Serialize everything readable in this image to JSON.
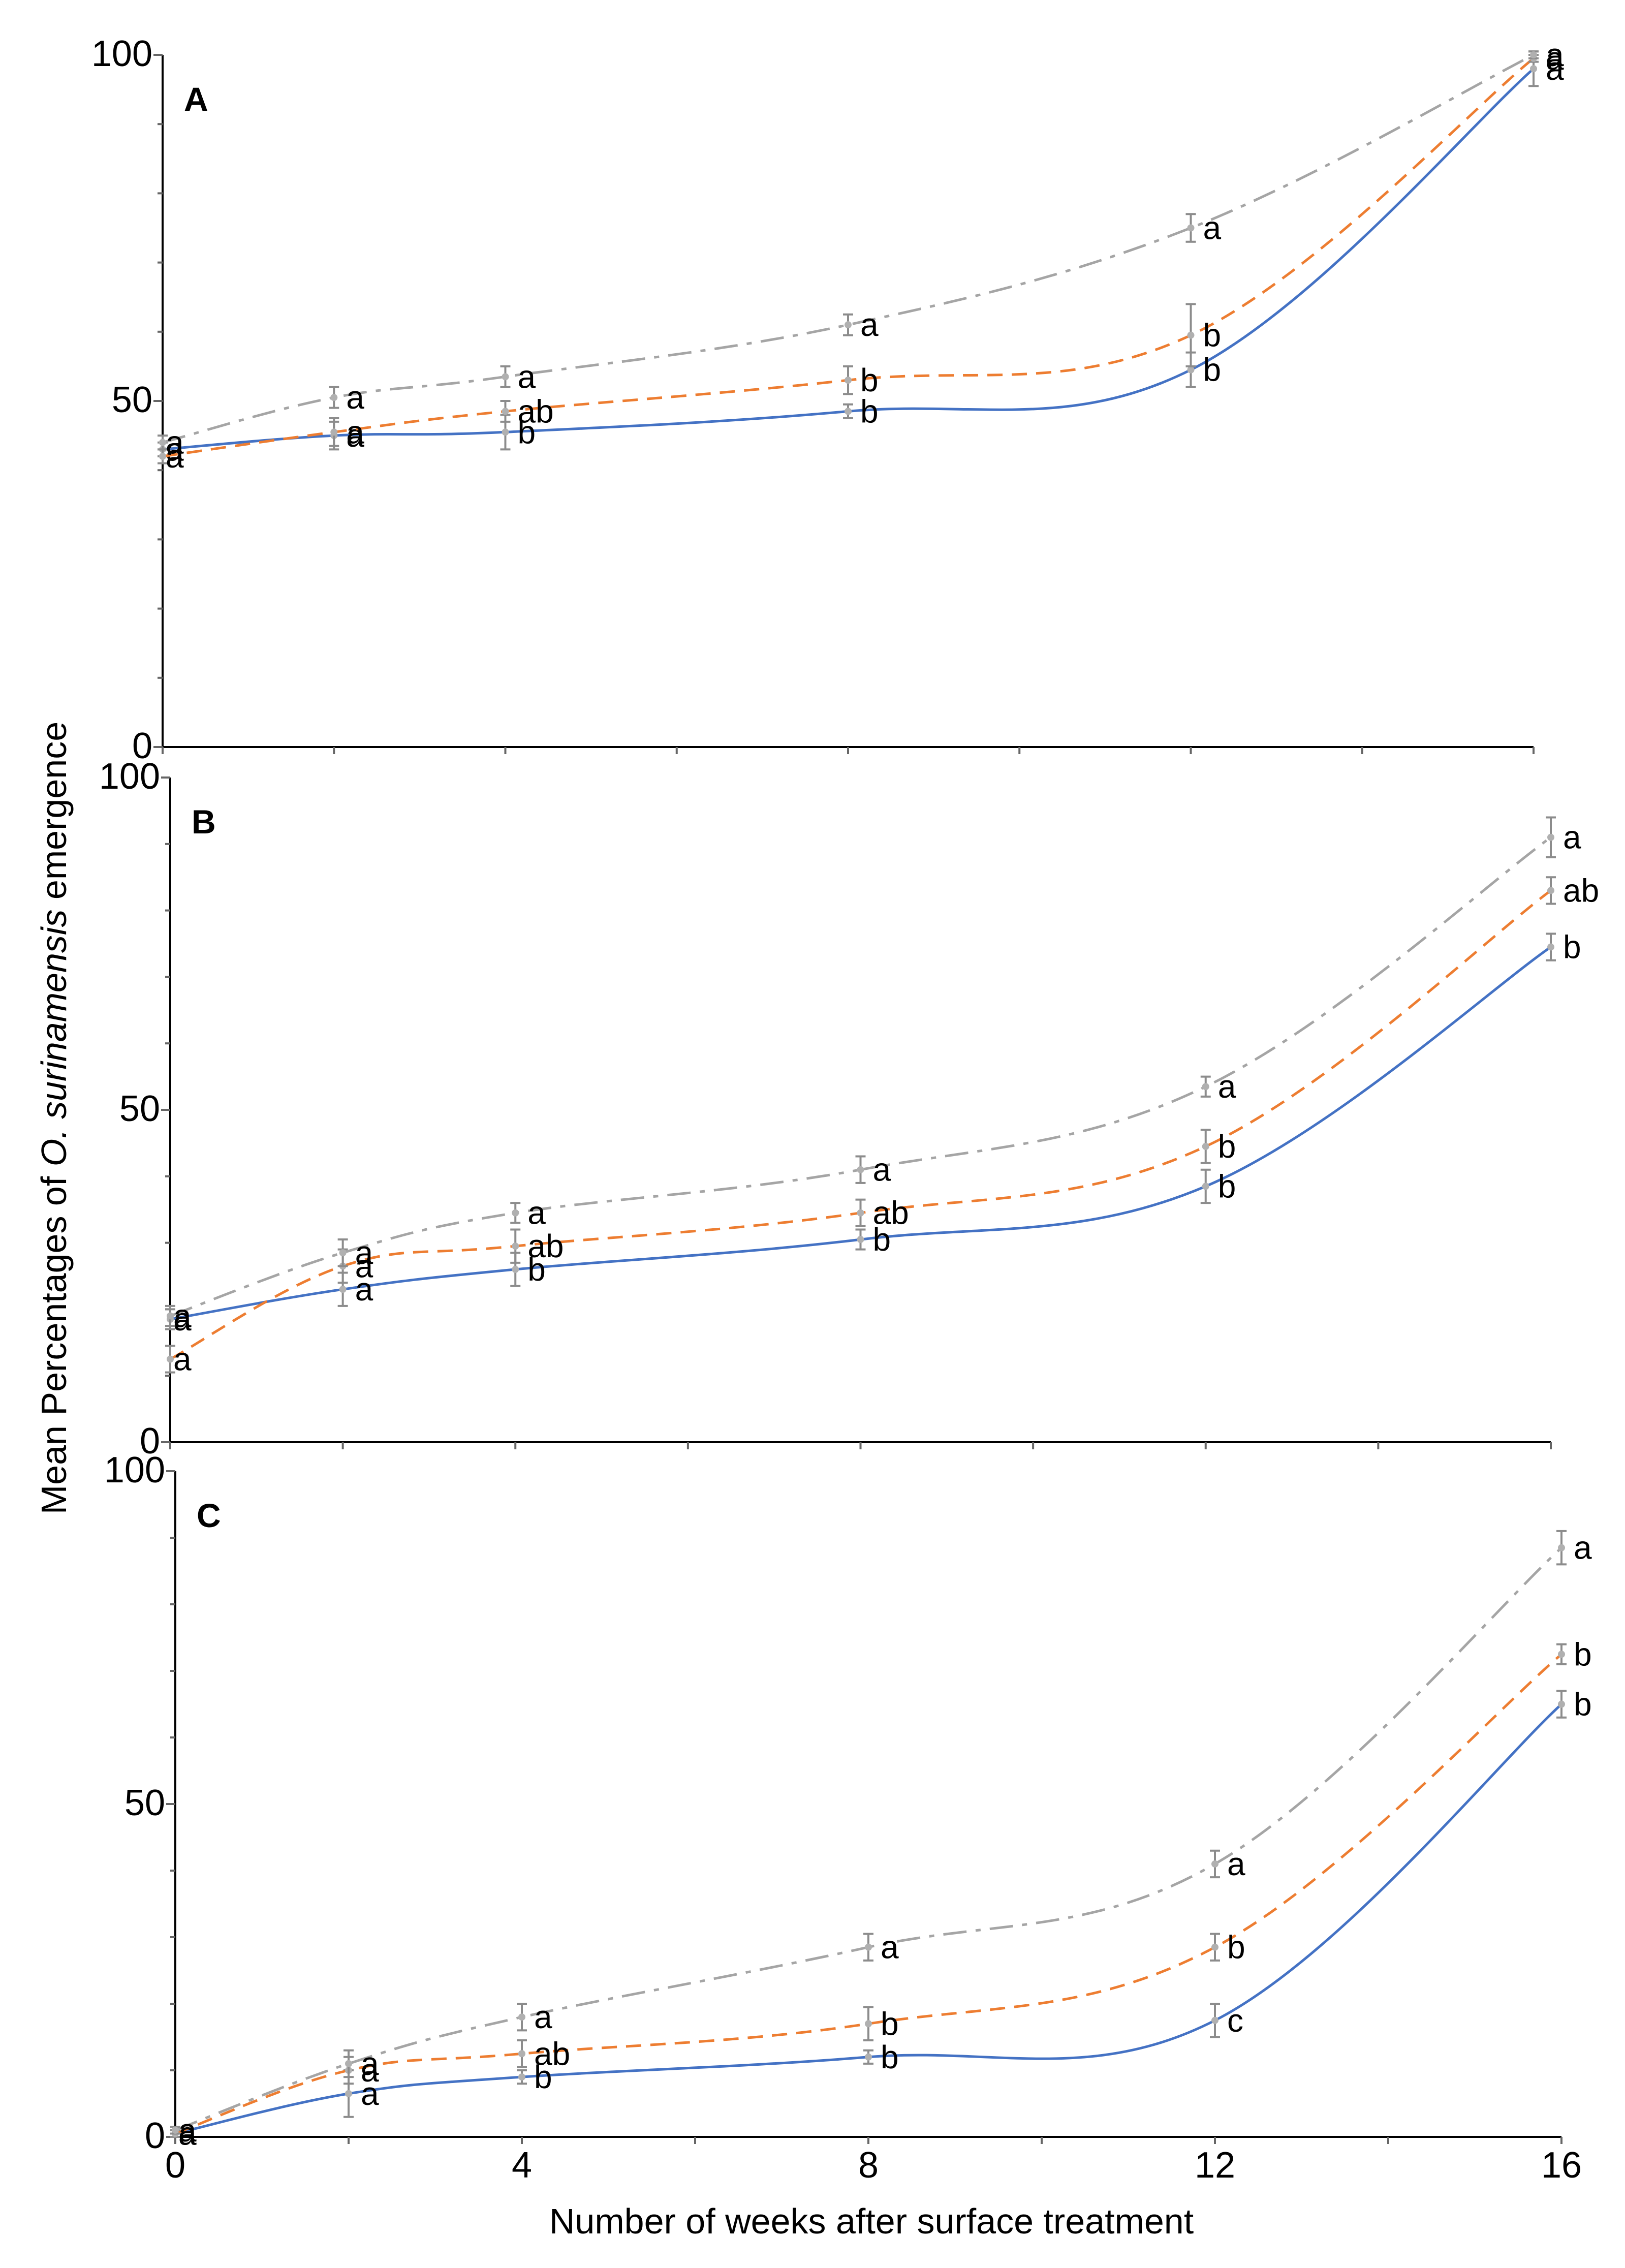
{
  "chart_data": {
    "type": "line",
    "xlabel": "Number of weeks after surface treatment",
    "ylabel": {
      "prefix": "Mean Percentages of ",
      "species": "O. surinamensis",
      "suffix": " emergence"
    },
    "x_ticks": [
      "0",
      "4",
      "8",
      "12",
      "16"
    ],
    "x": [
      0,
      2,
      4,
      8,
      12,
      16
    ],
    "xlim": [
      0,
      16
    ],
    "series_styles": [
      {
        "name": "Series 1 (solid)",
        "color": "#4472C4",
        "dash": "solid"
      },
      {
        "name": "Series 2 (dashed)",
        "color": "#ED7D31",
        "dash": "dashed"
      },
      {
        "name": "Series 3 (dash-dot)",
        "color": "#A5A5A5",
        "dash": "dashdot"
      }
    ],
    "panels": [
      {
        "letter": "A",
        "ylim": [
          0,
          100
        ],
        "y_ticks": [
          "0",
          "50",
          "100"
        ],
        "series": [
          {
            "name": "Series 1 (solid)",
            "values": [
              43,
              45,
              45.5,
              48.5,
              54.5,
              98
            ],
            "errors": [
              1.0,
              2.0,
              2.5,
              1.0,
              2.5,
              2.5
            ],
            "labels": [
              "a",
              "a",
              "b",
              "b",
              "b",
              "a"
            ]
          },
          {
            "name": "Series 2 (dashed)",
            "values": [
              42,
              45.5,
              48.5,
              53,
              59.5,
              99.5
            ],
            "errors": [
              1.0,
              2.0,
              1.5,
              2.0,
              4.5,
              0.5
            ],
            "labels": [
              "a",
              "a",
              "ab",
              "b",
              "b",
              "a"
            ]
          },
          {
            "name": "Series 3 (dash-dot)",
            "values": [
              44,
              50.5,
              53.5,
              61,
              75,
              100
            ],
            "errors": [
              1.0,
              1.5,
              1.5,
              1.5,
              2.0,
              0.5
            ],
            "labels": [
              "a",
              "a",
              "a",
              "a",
              "a",
              "a"
            ]
          }
        ]
      },
      {
        "letter": "B",
        "ylim": [
          0,
          100
        ],
        "y_ticks": [
          "0",
          "50",
          "100"
        ],
        "series": [
          {
            "name": "Series 1 (solid)",
            "values": [
              18.5,
              23,
              26,
              30.5,
              38.5,
              74.5
            ],
            "errors": [
              1.5,
              2.5,
              2.5,
              1.5,
              2.5,
              2.0
            ],
            "labels": [
              "a",
              "a",
              "b",
              "b",
              "b",
              "b"
            ]
          },
          {
            "name": "Series 2 (dashed)",
            "values": [
              12.5,
              26.5,
              29.5,
              34.5,
              44.5,
              83
            ],
            "errors": [
              2.0,
              2.5,
              2.5,
              2.0,
              2.5,
              2.0
            ],
            "labels": [
              "a",
              "a",
              "ab",
              "ab",
              "b",
              "ab"
            ]
          },
          {
            "name": "Series 3 (dash-dot)",
            "values": [
              19,
              28.5,
              34.5,
              41,
              53.5,
              91
            ],
            "errors": [
              1.5,
              2.0,
              1.5,
              2.0,
              1.5,
              3.0
            ],
            "labels": [
              "a",
              "a",
              "a",
              "a",
              "a",
              "a"
            ]
          }
        ]
      },
      {
        "letter": "C",
        "ylim": [
          0,
          100
        ],
        "y_ticks": [
          "0",
          "50",
          "100"
        ],
        "series": [
          {
            "name": "Series 1 (solid)",
            "values": [
              0.5,
              6.5,
              9,
              12,
              17.5,
              65
            ],
            "errors": [
              0.5,
              3.5,
              1.0,
              1.0,
              2.5,
              2.0
            ],
            "labels": [
              "a",
              "a",
              "b",
              "b",
              "c",
              "b"
            ]
          },
          {
            "name": "Series 2 (dashed)",
            "values": [
              0.5,
              10,
              12.5,
              17,
              28.5,
              72.5
            ],
            "errors": [
              0.5,
              2.0,
              2.0,
              2.5,
              2.0,
              1.5
            ],
            "labels": [
              "a",
              "a",
              "ab",
              "b",
              "b",
              "b"
            ]
          },
          {
            "name": "Series 3 (dash-dot)",
            "values": [
              1,
              11,
              18,
              28.5,
              41,
              88.5
            ],
            "errors": [
              0.5,
              2.0,
              2.0,
              2.0,
              2.0,
              2.5
            ],
            "labels": [
              "a",
              "a",
              "a",
              "a",
              "a",
              "a"
            ]
          }
        ]
      }
    ]
  }
}
